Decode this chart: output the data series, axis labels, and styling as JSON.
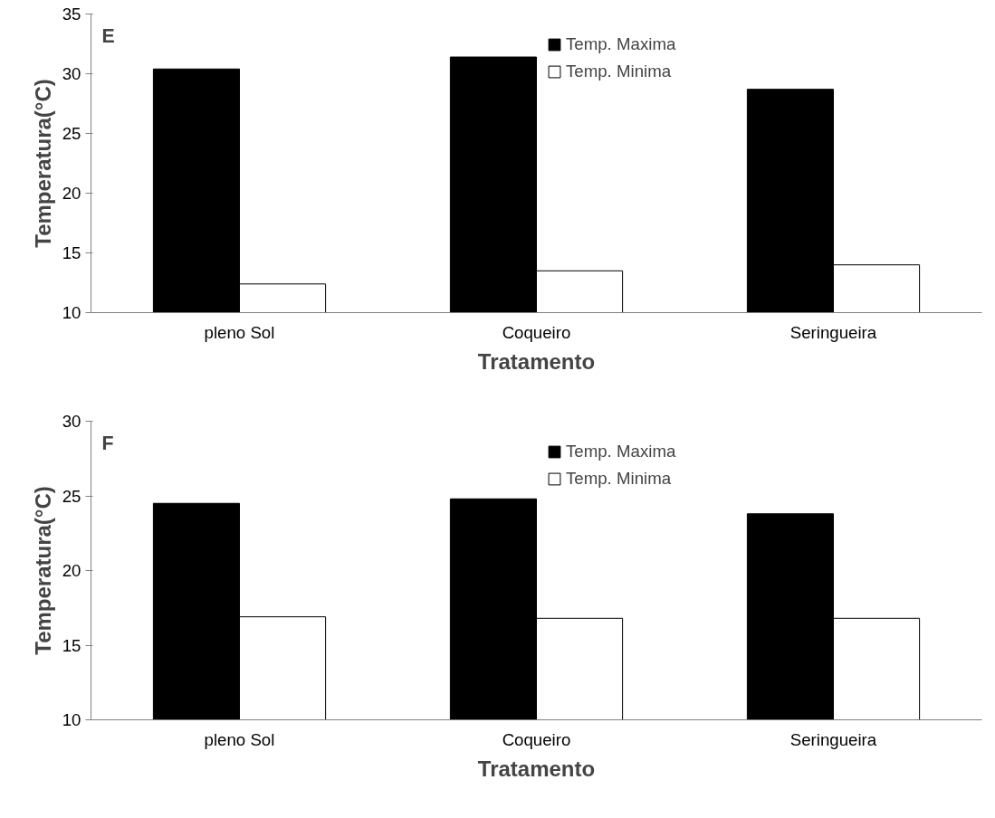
{
  "chart_data": [
    {
      "type": "bar",
      "annotations": [
        "E"
      ],
      "xlabel": "Tratamento",
      "ylabel": "Temperatura(°C)",
      "categories": [
        "pleno Sol",
        "Coqueiro",
        "Seringueira"
      ],
      "ylim": [
        10,
        35
      ],
      "yticks": [
        10,
        15,
        20,
        25,
        30,
        35
      ],
      "legend": "top",
      "grid": false,
      "series": [
        {
          "name": "Temp. Maxima",
          "color": "#000000",
          "values": [
            30.4,
            31.4,
            28.7
          ]
        },
        {
          "name": "Temp. Minima",
          "color": "#ffffff",
          "values": [
            12.4,
            13.5,
            14.0
          ]
        }
      ]
    },
    {
      "type": "bar",
      "annotations": [
        "F"
      ],
      "xlabel": "Tratamento",
      "ylabel": "Temperatura(°C)",
      "categories": [
        "pleno Sol",
        "Coqueiro",
        "Seringueira"
      ],
      "ylim": [
        10,
        30
      ],
      "yticks": [
        10,
        15,
        20,
        25,
        30
      ],
      "legend": "top",
      "grid": false,
      "series": [
        {
          "name": "Temp. Maxima",
          "color": "#000000",
          "values": [
            24.5,
            24.8,
            23.8
          ]
        },
        {
          "name": "Temp. Minima",
          "color": "#ffffff",
          "values": [
            16.9,
            16.8,
            16.8
          ]
        }
      ]
    }
  ]
}
